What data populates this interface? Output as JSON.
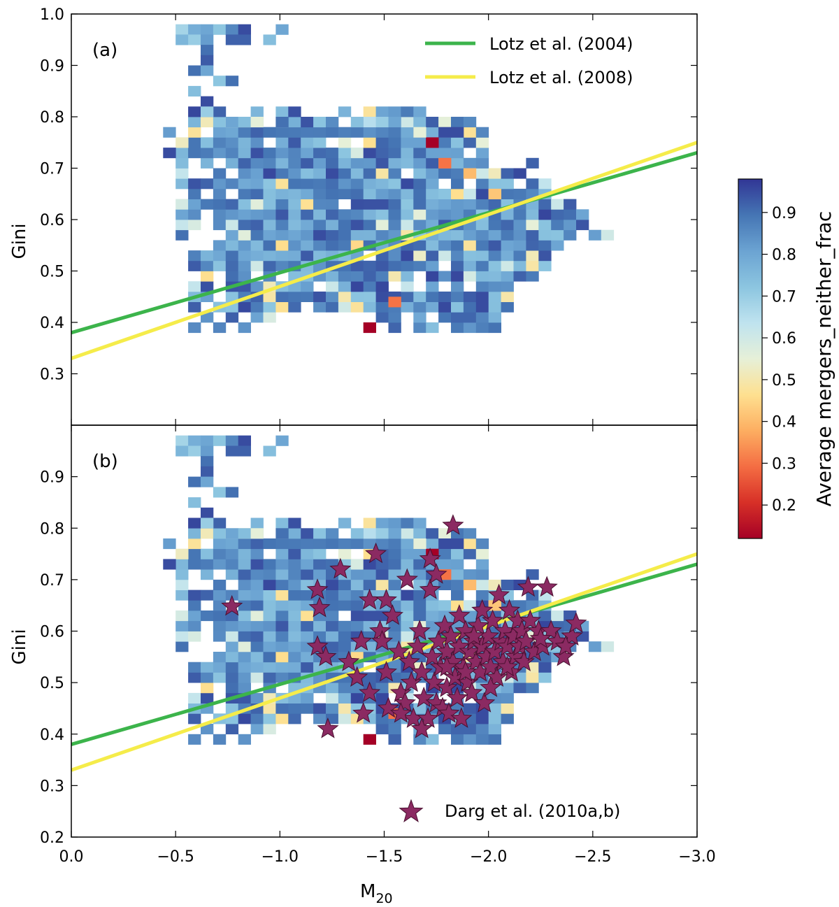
{
  "chart_data": {
    "type": "heatmap",
    "xlabel": "M20",
    "xlabel_main": "M",
    "xlabel_sub": "20",
    "ylabel": "Gini",
    "xlim": [
      0.0,
      -3.0
    ],
    "xticks": [
      0.0,
      -0.5,
      -1.0,
      -1.5,
      -2.0,
      -2.5,
      -3.0
    ],
    "xtick_labels": [
      "0.0",
      "−0.5",
      "−1.0",
      "−1.5",
      "−2.0",
      "−2.5",
      "−3.0"
    ],
    "colorbar": {
      "label": "Average mergers_neither_frac",
      "range": [
        0.12,
        0.98
      ],
      "ticks": [
        0.2,
        0.3,
        0.4,
        0.5,
        0.6,
        0.7,
        0.8,
        0.9
      ],
      "tick_labels": [
        "0.2",
        "0.3",
        "0.4",
        "0.5",
        "0.6",
        "0.7",
        "0.8",
        "0.9"
      ],
      "colormap": "RdYlBu"
    },
    "panels": [
      {
        "label": "(a)",
        "ylim": [
          0.2,
          1.0
        ],
        "yticks": [
          0.3,
          0.4,
          0.5,
          0.6,
          0.7,
          0.8,
          0.9,
          1.0
        ],
        "ytick_labels": [
          "0.3",
          "0.4",
          "0.5",
          "0.6",
          "0.7",
          "0.8",
          "0.9",
          "1.0"
        ],
        "legend_position": "top-right",
        "show_stars": false
      },
      {
        "label": "(b)",
        "ylim": [
          0.2,
          1.0
        ],
        "yticks": [
          0.2,
          0.3,
          0.4,
          0.5,
          0.6,
          0.7,
          0.8,
          0.9
        ],
        "ytick_labels": [
          "0.2",
          "0.3",
          "0.4",
          "0.5",
          "0.6",
          "0.7",
          "0.8",
          "0.9"
        ],
        "legend_position": "bottom-right",
        "show_stars": true
      }
    ],
    "lines": [
      {
        "name": "Lotz et al. (2004)",
        "color": "#3cb44b",
        "x": [
          0.0,
          -3.0
        ],
        "y": [
          0.38,
          0.73
        ]
      },
      {
        "name": "Lotz et al. (2008)",
        "color": "#f5ec4a",
        "x": [
          0.0,
          -3.0
        ],
        "y": [
          0.33,
          0.75
        ]
      }
    ],
    "stars": {
      "name": "Darg et al. (2010a,b)",
      "color": "#8b2a62",
      "points": [
        [
          -0.77,
          0.648
        ],
        [
          -1.18,
          0.68
        ],
        [
          -1.19,
          0.645
        ],
        [
          -1.18,
          0.57
        ],
        [
          -1.22,
          0.55
        ],
        [
          -1.23,
          0.41
        ],
        [
          -1.29,
          0.72
        ],
        [
          -1.33,
          0.54
        ],
        [
          -1.37,
          0.51
        ],
        [
          -1.39,
          0.58
        ],
        [
          -1.4,
          0.44
        ],
        [
          -1.43,
          0.66
        ],
        [
          -1.43,
          0.48
        ],
        [
          -1.46,
          0.75
        ],
        [
          -1.48,
          0.6
        ],
        [
          -1.49,
          0.58
        ],
        [
          -1.51,
          0.66
        ],
        [
          -1.51,
          0.52
        ],
        [
          -1.52,
          0.45
        ],
        [
          -1.54,
          0.63
        ],
        [
          -1.57,
          0.56
        ],
        [
          -1.58,
          0.48
        ],
        [
          -1.6,
          0.46
        ],
        [
          -1.61,
          0.7
        ],
        [
          -1.62,
          0.54
        ],
        [
          -1.63,
          0.5
        ],
        [
          -1.64,
          0.43
        ],
        [
          -1.66,
          0.57
        ],
        [
          -1.67,
          0.6
        ],
        [
          -1.68,
          0.52
        ],
        [
          -1.69,
          0.47
        ],
        [
          -1.71,
          0.43
        ],
        [
          -1.72,
          0.74
        ],
        [
          -1.72,
          0.68
        ],
        [
          -1.73,
          0.55
        ],
        [
          -1.74,
          0.5
        ],
        [
          -1.75,
          0.71
        ],
        [
          -1.75,
          0.46
        ],
        [
          -1.76,
          0.58
        ],
        [
          -1.77,
          0.53
        ],
        [
          -1.78,
          0.45
        ],
        [
          -1.79,
          0.61
        ],
        [
          -1.8,
          0.56
        ],
        [
          -1.8,
          0.49
        ],
        [
          -1.81,
          0.44
        ],
        [
          -1.82,
          0.59
        ],
        [
          -1.83,
          0.54
        ],
        [
          -1.83,
          0.805
        ],
        [
          -1.84,
          0.51
        ],
        [
          -1.85,
          0.47
        ],
        [
          -1.86,
          0.63
        ],
        [
          -1.86,
          0.57
        ],
        [
          -1.87,
          0.43
        ],
        [
          -1.88,
          0.53
        ],
        [
          -1.89,
          0.6
        ],
        [
          -1.9,
          0.5
        ],
        [
          -1.91,
          0.56
        ],
        [
          -1.92,
          0.48
        ],
        [
          -1.93,
          0.58
        ],
        [
          -1.94,
          0.54
        ],
        [
          -1.95,
          0.61
        ],
        [
          -1.96,
          0.52
        ],
        [
          -1.97,
          0.57
        ],
        [
          -1.98,
          0.46
        ],
        [
          -1.99,
          0.55
        ],
        [
          -2.0,
          0.59
        ],
        [
          -2.01,
          0.53
        ],
        [
          -2.02,
          0.62
        ],
        [
          -2.03,
          0.56
        ],
        [
          -2.04,
          0.51
        ],
        [
          -2.05,
          0.67
        ],
        [
          -2.06,
          0.58
        ],
        [
          -2.07,
          0.54
        ],
        [
          -2.08,
          0.6
        ],
        [
          -2.09,
          0.57
        ],
        [
          -2.1,
          0.64
        ],
        [
          -2.11,
          0.52
        ],
        [
          -2.12,
          0.59
        ],
        [
          -2.13,
          0.55
        ],
        [
          -2.14,
          0.62
        ],
        [
          -2.15,
          0.57
        ],
        [
          -2.16,
          0.6
        ],
        [
          -2.17,
          0.54
        ],
        [
          -2.18,
          0.58
        ],
        [
          -2.19,
          0.685
        ],
        [
          -2.2,
          0.62
        ],
        [
          -2.22,
          0.56
        ],
        [
          -2.24,
          0.6
        ],
        [
          -2.26,
          0.57
        ],
        [
          -2.28,
          0.685
        ],
        [
          -2.3,
          0.6
        ],
        [
          -2.33,
          0.58
        ],
        [
          -2.36,
          0.55
        ],
        [
          -2.4,
          0.59
        ],
        [
          -2.42,
          0.615
        ],
        [
          -1.97,
          0.64
        ],
        [
          -2.01,
          0.49
        ],
        [
          -1.58,
          0.44
        ],
        [
          -1.68,
          0.41
        ],
        [
          -1.89,
          0.52
        ],
        [
          -2.09,
          0.53
        ],
        [
          -1.93,
          0.59
        ],
        [
          -1.8,
          0.53
        ],
        [
          -2.25,
          0.585
        ],
        [
          -2.37,
          0.57
        ]
      ]
    }
  }
}
